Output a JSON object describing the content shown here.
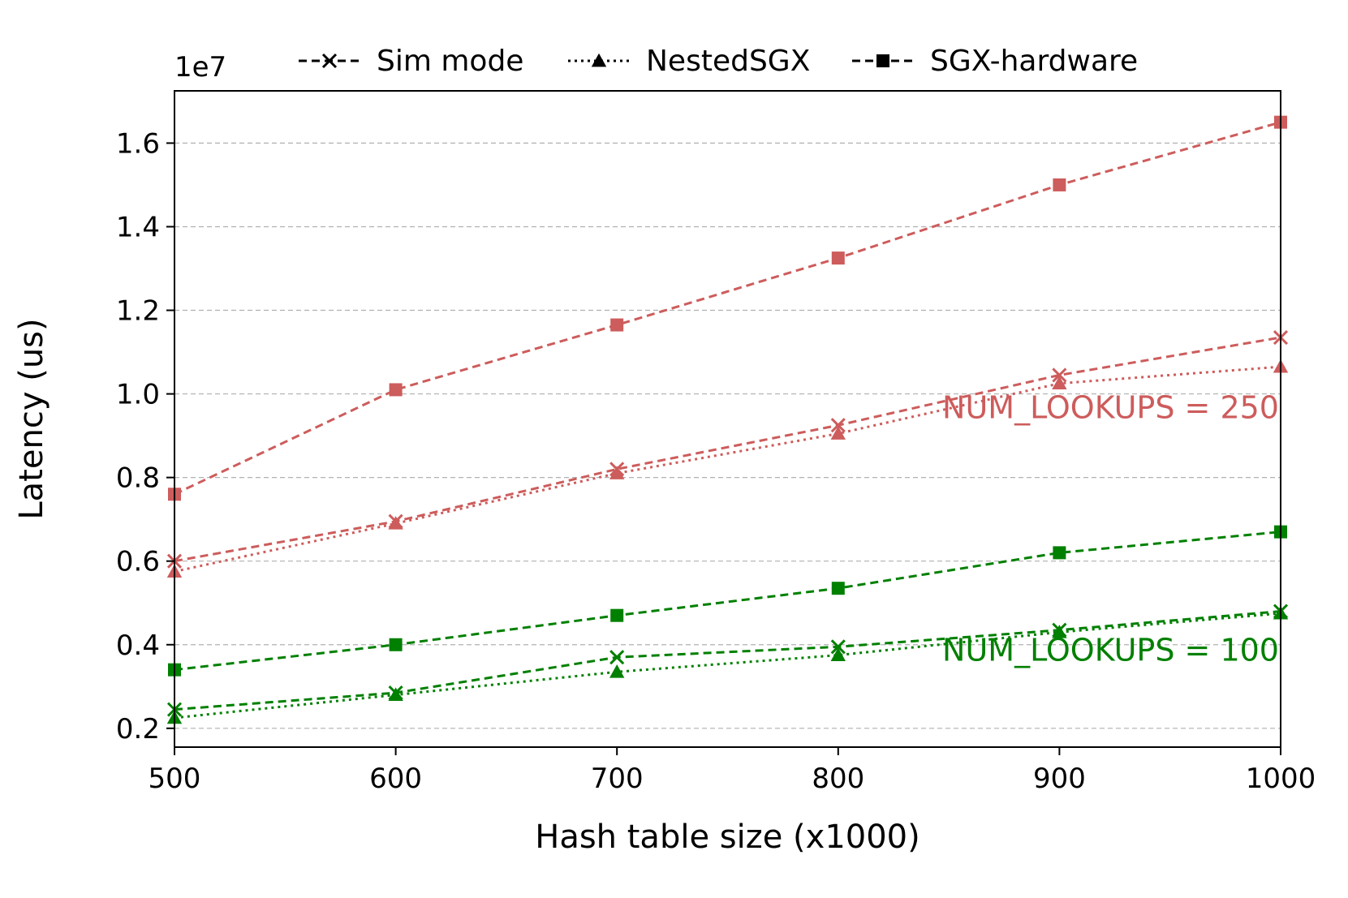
{
  "chart_data": {
    "type": "line",
    "xlabel": "Hash table size (x1000)",
    "ylabel": "Latency (us)",
    "y_offset_label": "1e7",
    "xlim": [
      500,
      1000
    ],
    "ylim": [
      0.155,
      1.725
    ],
    "xticks": [
      500,
      600,
      700,
      800,
      900,
      1000
    ],
    "yticks": [
      0.2,
      0.4,
      0.6,
      0.8,
      1.0,
      1.2,
      1.4,
      1.6
    ],
    "xtick_labels": [
      "500",
      "600",
      "700",
      "800",
      "900",
      "1000"
    ],
    "ytick_labels": [
      "0.2",
      "0.4",
      "0.6",
      "0.8",
      "1.0",
      "1.2",
      "1.4",
      "1.6"
    ],
    "grid": "y-dashed",
    "legend": {
      "placement": "top-center",
      "entries": [
        {
          "label": "Sim mode",
          "marker": "x",
          "linestyle": "dashed"
        },
        {
          "label": "NestedSGX",
          "marker": "triangle",
          "linestyle": "dotted"
        },
        {
          "label": "SGX-hardware",
          "marker": "square",
          "linestyle": "dashed"
        }
      ]
    },
    "x": [
      500,
      600,
      700,
      800,
      900,
      1000
    ],
    "groups": [
      {
        "label": "NUM_LOOKUPS = 250",
        "color": "#cd5c5c",
        "series": [
          {
            "legend_index": 0,
            "values": [
              0.6,
              0.695,
              0.82,
              0.925,
              1.045,
              1.135
            ]
          },
          {
            "legend_index": 1,
            "values": [
              0.575,
              0.69,
              0.81,
              0.905,
              1.025,
              1.065
            ]
          },
          {
            "legend_index": 2,
            "values": [
              0.76,
              1.01,
              1.165,
              1.325,
              1.5,
              1.65
            ]
          }
        ]
      },
      {
        "label": "NUM_LOOKUPS = 100",
        "color": "#008000",
        "series": [
          {
            "legend_index": 0,
            "values": [
              0.245,
              0.285,
              0.37,
              0.395,
              0.435,
              0.48
            ]
          },
          {
            "legend_index": 1,
            "values": [
              0.225,
              0.28,
              0.335,
              0.375,
              0.43,
              0.475
            ]
          },
          {
            "legend_index": 2,
            "values": [
              0.34,
              0.4,
              0.47,
              0.535,
              0.62,
              0.67
            ]
          }
        ]
      }
    ]
  }
}
